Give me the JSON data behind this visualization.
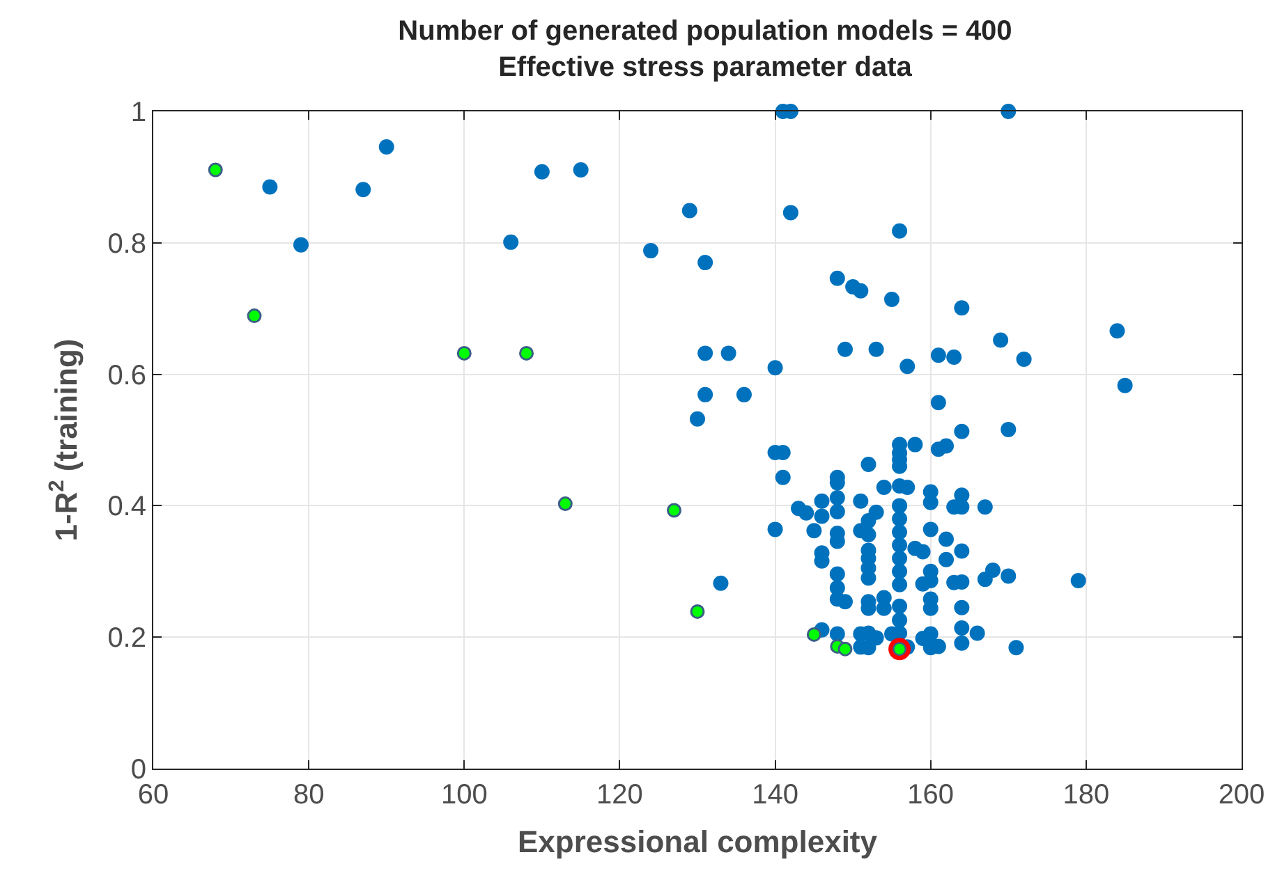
{
  "chart_data": {
    "type": "scatter",
    "title": "Number of generated population models = 400\nEffective stress parameter data",
    "xlabel": "Expressional complexity",
    "ylabel": "1-R$^{2}$ (training)",
    "xlim": [
      60,
      200
    ],
    "xticks": [
      60,
      80,
      100,
      120,
      140,
      160,
      180,
      200
    ],
    "ylim": [
      0,
      1
    ],
    "yticks": [
      0,
      0.2,
      0.4,
      0.6,
      0.8,
      1
    ],
    "grid": true,
    "marker": "circle",
    "series": [
      {
        "color": "#0072bd",
        "x": [
          75,
          79,
          87,
          90,
          106,
          110,
          115,
          124,
          129,
          141,
          142,
          170,
          142,
          156,
          131,
          148,
          150,
          151,
          155,
          164,
          184,
          169,
          131,
          134,
          149,
          153,
          161,
          163,
          172,
          140,
          157,
          185,
          131,
          136,
          130,
          161,
          164,
          170,
          156,
          158,
          161,
          162,
          156,
          156,
          156,
          140,
          141,
          141,
          152,
          148,
          148,
          154,
          156,
          157,
          160,
          160,
          164,
          164,
          163,
          167,
          143,
          144,
          146,
          146,
          148,
          148,
          151,
          153,
          152,
          151,
          152,
          140,
          145,
          148,
          148,
          156,
          156,
          156,
          156,
          156,
          156,
          156,
          160,
          158,
          159,
          162,
          162,
          164,
          146,
          146,
          152,
          152,
          152,
          152,
          148,
          148,
          148,
          160,
          160,
          159,
          163,
          164,
          167,
          168,
          170,
          179,
          133,
          152,
          152,
          154,
          154,
          149,
          156,
          156,
          160,
          160,
          164,
          146,
          148,
          151,
          152,
          153,
          151,
          152,
          155,
          156,
          157,
          159,
          160,
          160,
          161,
          164,
          164,
          166,
          171
        ],
        "values": [
          0.885,
          0.797,
          0.881,
          0.946,
          0.801,
          0.908,
          0.911,
          0.788,
          0.849,
          1.0,
          1.0,
          1.0,
          0.846,
          0.818,
          0.77,
          0.746,
          0.733,
          0.727,
          0.714,
          0.701,
          0.666,
          0.652,
          0.632,
          0.632,
          0.638,
          0.638,
          0.629,
          0.626,
          0.623,
          0.61,
          0.612,
          0.583,
          0.569,
          0.569,
          0.532,
          0.557,
          0.513,
          0.516,
          0.493,
          0.493,
          0.486,
          0.491,
          0.48,
          0.47,
          0.46,
          0.481,
          0.481,
          0.443,
          0.463,
          0.443,
          0.435,
          0.428,
          0.43,
          0.428,
          0.421,
          0.405,
          0.416,
          0.398,
          0.398,
          0.398,
          0.396,
          0.389,
          0.407,
          0.384,
          0.412,
          0.391,
          0.407,
          0.39,
          0.377,
          0.362,
          0.356,
          0.364,
          0.362,
          0.358,
          0.346,
          0.4,
          0.38,
          0.36,
          0.34,
          0.32,
          0.3,
          0.28,
          0.364,
          0.335,
          0.33,
          0.349,
          0.318,
          0.331,
          0.328,
          0.316,
          0.332,
          0.32,
          0.305,
          0.29,
          0.296,
          0.275,
          0.258,
          0.3,
          0.286,
          0.281,
          0.283,
          0.284,
          0.288,
          0.302,
          0.293,
          0.286,
          0.282,
          0.254,
          0.244,
          0.26,
          0.244,
          0.254,
          0.247,
          0.226,
          0.258,
          0.244,
          0.245,
          0.211,
          0.205,
          0.205,
          0.206,
          0.199,
          0.185,
          0.184,
          0.205,
          0.206,
          0.185,
          0.198,
          0.205,
          0.184,
          0.186,
          0.214,
          0.191,
          0.206,
          0.184
        ]
      },
      {
        "color": "#00ff00",
        "x": [
          68,
          73,
          100,
          108,
          113,
          127,
          130,
          145,
          148,
          149,
          156
        ],
        "values": [
          0.911,
          0.689,
          0.632,
          0.632,
          0.403,
          0.393,
          0.239,
          0.204,
          0.186,
          0.182,
          0.182
        ]
      },
      {
        "color": "#ff0000",
        "x": [
          156
        ],
        "values": [
          0.182
        ]
      }
    ]
  }
}
